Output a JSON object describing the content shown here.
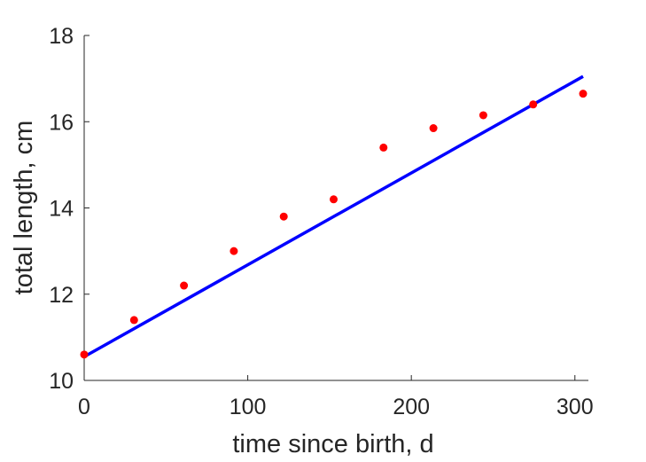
{
  "chart_data": {
    "type": "scatter",
    "title": "",
    "xlabel": "time since birth, d",
    "ylabel": "total length, cm",
    "xlim": [
      0,
      305
    ],
    "ylim": [
      10,
      18
    ],
    "xticks": [
      0,
      100,
      200,
      300
    ],
    "yticks": [
      10,
      12,
      14,
      16,
      18
    ],
    "grid": false,
    "legend": "none",
    "series": [
      {
        "type": "scatter",
        "color": "#ff0000",
        "x": [
          0,
          30.5,
          61,
          91.5,
          122,
          152.5,
          183,
          213.5,
          244,
          274.5,
          305
        ],
        "y": [
          10.6,
          11.4,
          12.2,
          13.0,
          13.8,
          14.2,
          15.4,
          15.85,
          16.15,
          16.4,
          16.65
        ]
      },
      {
        "type": "line",
        "color": "#0000ff",
        "x": [
          0,
          305
        ],
        "y": [
          10.55,
          17.05
        ]
      }
    ]
  }
}
